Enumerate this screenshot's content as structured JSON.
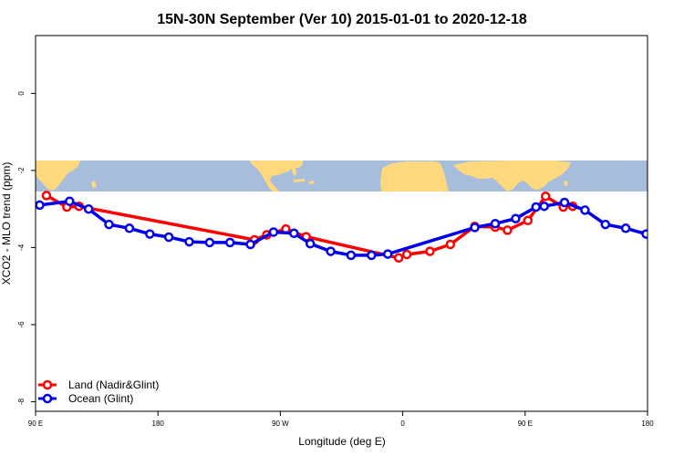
{
  "chart_data": {
    "type": "line",
    "title": "15N-30N September (Ver 10)   2015-01-01 to 2020-12-18",
    "xlabel": "Longitude (deg E)",
    "ylabel": "XCO2 - MLO trend (ppm)",
    "xlim": [
      90,
      540
    ],
    "ylim": [
      -8.25,
      1.5
    ],
    "x_ticks": [
      {
        "value": 90,
        "label": "90 E"
      },
      {
        "value": 180,
        "label": "180"
      },
      {
        "value": 270,
        "label": "90 W"
      },
      {
        "value": 360,
        "label": "0"
      },
      {
        "value": 450,
        "label": "90 E"
      },
      {
        "value": 540,
        "label": "180"
      }
    ],
    "y_ticks": [
      {
        "value": 0,
        "label": "0"
      },
      {
        "value": -2,
        "label": "-2"
      },
      {
        "value": -4,
        "label": "-4"
      },
      {
        "value": -6,
        "label": "-6"
      },
      {
        "value": -8,
        "label": "-8"
      }
    ],
    "map_band": {
      "y_top": -1.87,
      "y_bottom": -2.68,
      "ocean_color": "#a6bddb",
      "land_color": "#fdd87c"
    },
    "series": [
      {
        "name": "Land (Nadir&Glint)",
        "color": "#ff0000",
        "x": [
          98,
          113,
          122,
          251,
          260,
          274,
          289,
          357,
          363,
          380,
          395,
          413,
          428,
          437,
          452,
          465,
          478,
          485
        ],
        "y": [
          -2.65,
          -2.95,
          -2.93,
          -3.8,
          -3.67,
          -3.52,
          -3.72,
          -4.27,
          -4.18,
          -4.1,
          -3.92,
          -3.45,
          -3.47,
          -3.55,
          -3.3,
          -2.67,
          -2.95,
          -2.93
        ]
      },
      {
        "name": "Ocean (Glint)",
        "color": "#0000ee",
        "x": [
          93,
          115,
          129,
          144,
          159,
          174,
          188,
          203,
          218,
          233,
          248,
          265,
          280,
          292,
          307,
          322,
          337,
          349,
          413,
          428,
          443,
          458,
          464,
          479,
          494,
          509,
          524,
          539
        ],
        "y": [
          -2.9,
          -2.8,
          -3.0,
          -3.4,
          -3.5,
          -3.65,
          -3.73,
          -3.85,
          -3.87,
          -3.87,
          -3.92,
          -3.6,
          -3.63,
          -3.9,
          -4.1,
          -4.2,
          -4.2,
          -4.17,
          -3.48,
          -3.38,
          -3.25,
          -2.95,
          -2.93,
          -2.83,
          -3.03,
          -3.4,
          -3.5,
          -3.65
        ]
      }
    ],
    "legend_position": "bottom-left"
  }
}
